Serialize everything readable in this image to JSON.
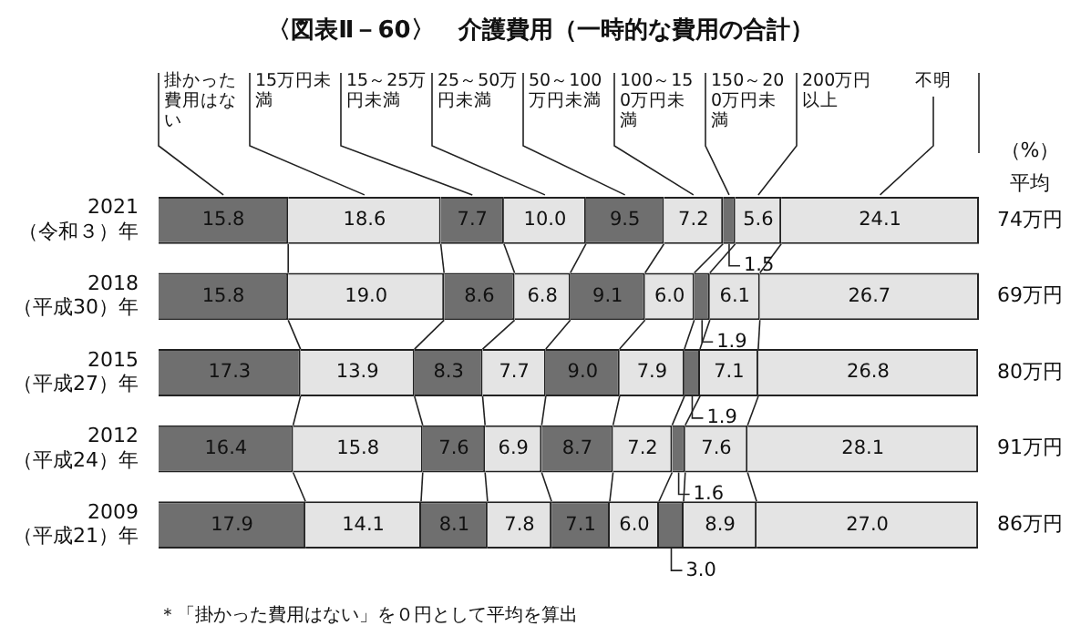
{
  "chart_data": {
    "type": "bar",
    "orientation": "horizontal",
    "stacked": true,
    "title": "〈図表Ⅱ－60〉　介護費用（一時的な費用の合計）",
    "categories": [
      "2021（令和３）年",
      "2018（平成30）年",
      "2015（平成27）年",
      "2012（平成24）年",
      "2009（平成21）年"
    ],
    "series": [
      {
        "name": "掛かった費用はない",
        "color": "#6f6f6f",
        "values": [
          15.8,
          15.8,
          17.3,
          16.4,
          17.9
        ],
        "value_labels": [
          "15.8",
          "15.8",
          "17.3",
          "16.4",
          "17.9"
        ]
      },
      {
        "name": "15万円未満",
        "color": "#e4e4e4",
        "values": [
          18.6,
          19.0,
          13.9,
          15.8,
          14.1
        ],
        "value_labels": [
          "18.6",
          "19.0",
          "13.9",
          "15.8",
          "14.1"
        ]
      },
      {
        "name": "15～25万円未満",
        "color": "#6f6f6f",
        "values": [
          7.7,
          8.6,
          8.3,
          7.6,
          8.1
        ],
        "value_labels": [
          "7.7",
          "8.6",
          "8.3",
          "7.6",
          "8.1"
        ]
      },
      {
        "name": "25～50万円未満",
        "color": "#e4e4e4",
        "values": [
          10.0,
          6.8,
          7.7,
          6.9,
          7.8
        ],
        "value_labels": [
          "10.0",
          "6.8",
          "7.7",
          "6.9",
          "7.8"
        ]
      },
      {
        "name": "50～100万円未満",
        "color": "#6f6f6f",
        "values": [
          9.5,
          9.1,
          9.0,
          8.7,
          7.1
        ],
        "value_labels": [
          "9.5",
          "9.1",
          "9.0",
          "8.7",
          "7.1"
        ]
      },
      {
        "name": "100～150万円未満",
        "color": "#e4e4e4",
        "values": [
          7.2,
          6.0,
          7.9,
          7.2,
          6.0
        ],
        "value_labels": [
          "7.2",
          "6.0",
          "7.9",
          "7.2",
          "6.0"
        ]
      },
      {
        "name": "150～200万円未満",
        "color": "#6f6f6f",
        "values": [
          1.5,
          1.9,
          1.9,
          1.6,
          3.0
        ],
        "value_labels": [
          "1.5",
          "1.9",
          "1.9",
          "1.6",
          "3.0"
        ]
      },
      {
        "name": "200万円以上",
        "color": "#e4e4e4",
        "values": [
          5.6,
          6.1,
          7.1,
          7.6,
          8.9
        ],
        "value_labels": [
          "5.6",
          "6.1",
          "7.1",
          "7.6",
          "8.9"
        ]
      },
      {
        "name": "不明",
        "color": "#e4e4e4",
        "values": [
          24.1,
          26.7,
          26.8,
          28.1,
          27.0
        ],
        "value_labels": [
          "24.1",
          "26.7",
          "26.8",
          "28.1",
          "27.0"
        ]
      }
    ],
    "xlim": [
      0,
      100
    ],
    "tick_labels": "y",
    "legend": "top",
    "annotations": [
      "（%）",
      "平均",
      "74万円",
      "69万円",
      "80万円",
      "91万円",
      "86万円",
      "＊「掛かった費用はない」を０円として平均を算出"
    ]
  }
}
